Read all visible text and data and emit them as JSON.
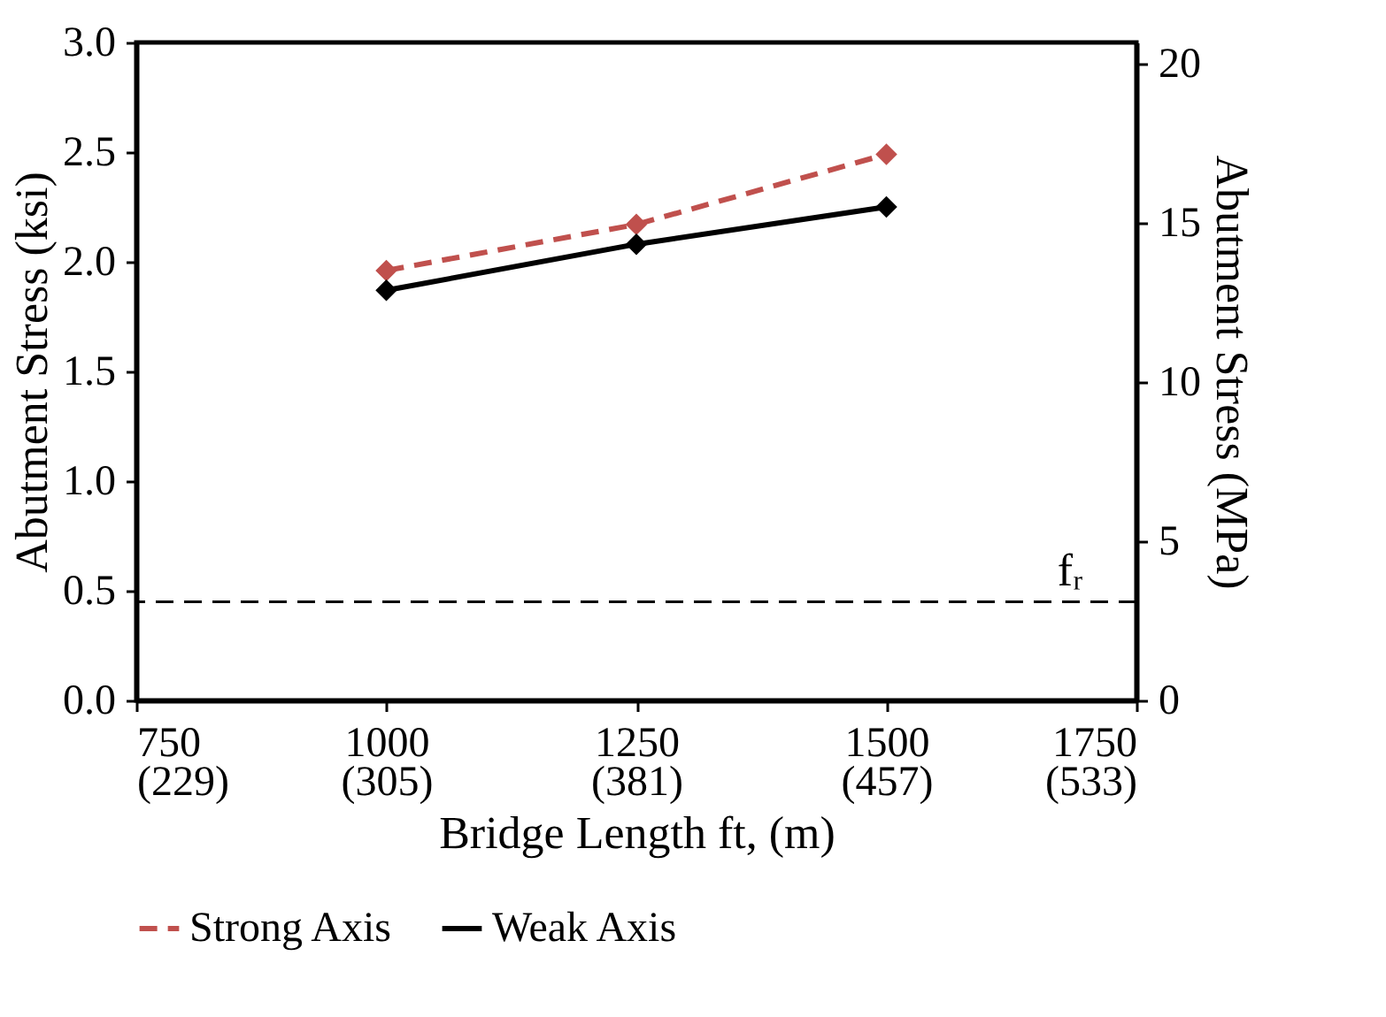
{
  "chart_data": {
    "type": "line",
    "xlabel": "Bridge Length ft, (m)",
    "ylabel": "Abutment  Stress (ksi)",
    "y2label": "Abutment  Stress (MPa)",
    "x": [
      1000,
      1250,
      1500
    ],
    "series": [
      {
        "name": "Strong Axis",
        "color": "#c0504d",
        "values": [
          1.96,
          2.17,
          2.49
        ],
        "line_style": "dashed"
      },
      {
        "name": "Weak Axis",
        "color": "#000000",
        "values": [
          1.87,
          2.08,
          2.25
        ],
        "line_style": "solid"
      }
    ],
    "xlim": [
      750,
      1750
    ],
    "xticks": [
      750,
      1000,
      1250,
      1500,
      1750
    ],
    "x2lim": [
      228.6,
      533.4
    ],
    "x2ticks": [
      {
        "value": 228.6,
        "label": "(229)"
      },
      {
        "value": 304.8,
        "label": "(305)"
      },
      {
        "value": 381,
        "label": "(381)"
      },
      {
        "value": 457.2,
        "label": "(457)"
      },
      {
        "value": 533.4,
        "label": "(533)"
      }
    ],
    "ylim": [
      0,
      3.0
    ],
    "yticks": [
      {
        "value": 0,
        "label": "0.0"
      },
      {
        "value": 0.5,
        "label": "0.5"
      },
      {
        "value": 1,
        "label": "1.0"
      },
      {
        "value": 1.5,
        "label": "1.5"
      },
      {
        "value": 2,
        "label": "2.0"
      },
      {
        "value": 2.5,
        "label": "2.5"
      },
      {
        "value": 3,
        "label": "3.0"
      }
    ],
    "y2lim": [
      0,
      20.68
    ],
    "y2ticks": [
      0,
      5,
      10,
      15,
      20
    ],
    "ref_lines": [
      {
        "axis": "y",
        "value": 0.45,
        "label": "fᵣ",
        "color": "#000000",
        "line_style": "dashed"
      }
    ],
    "marker": "diamond",
    "grid": false,
    "legend": "bottom"
  }
}
